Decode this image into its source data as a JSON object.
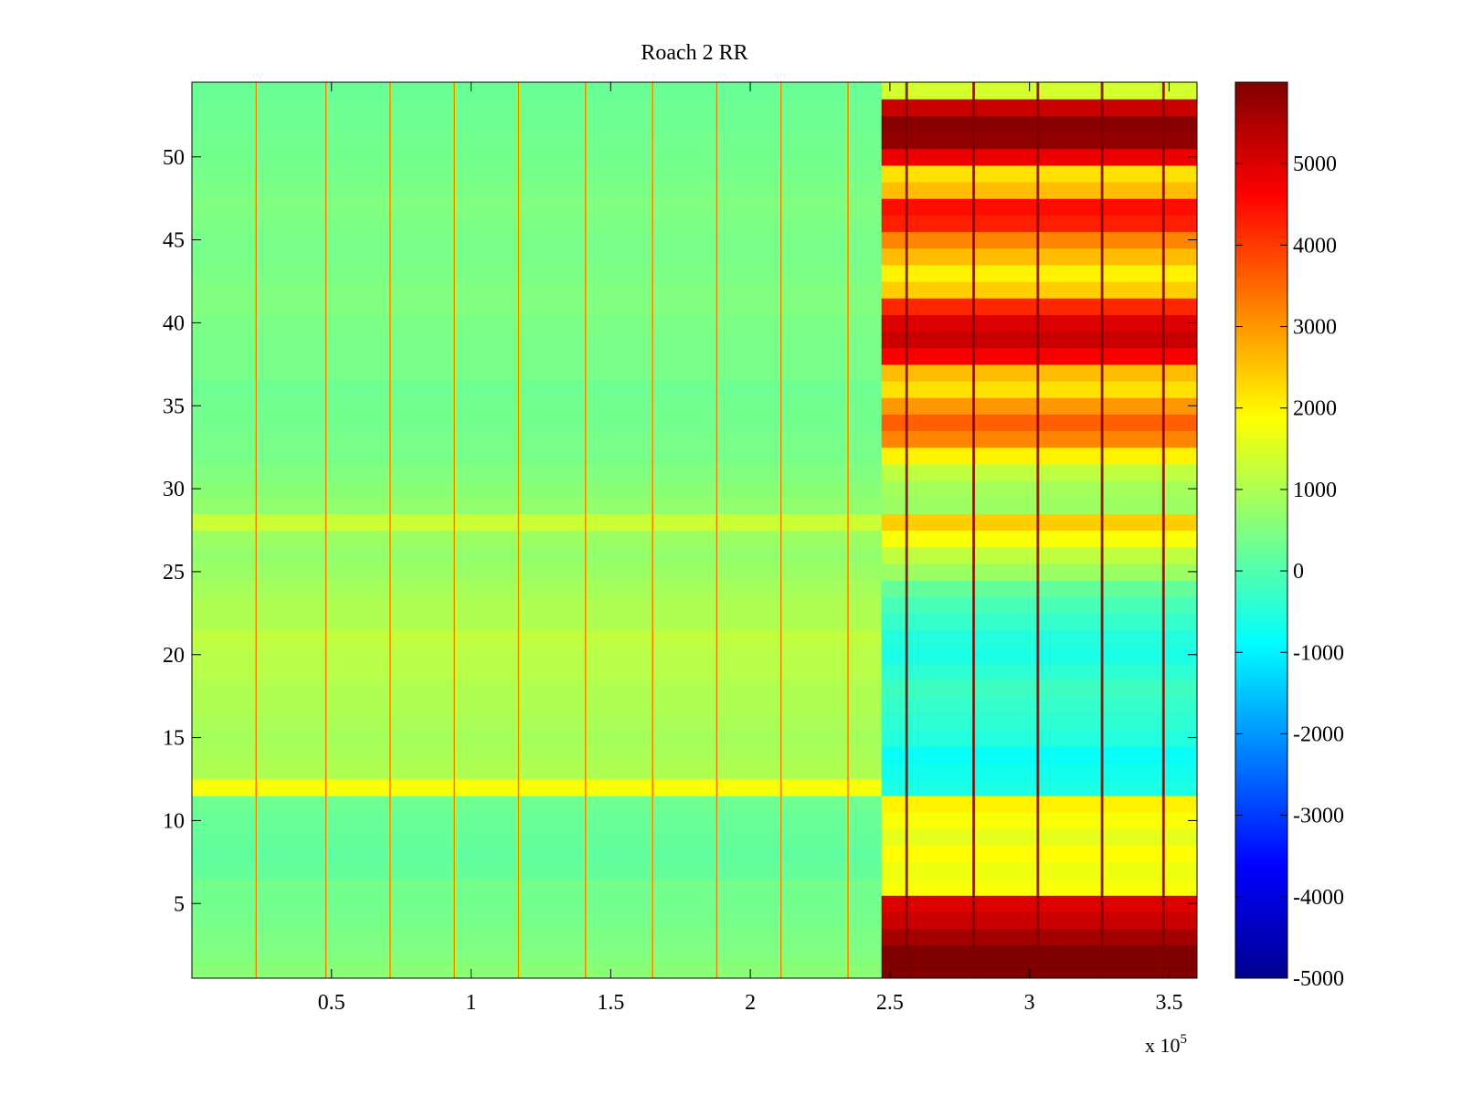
{
  "chart_data": {
    "type": "heatmap",
    "title": "Roach 2 RR",
    "xlabel": "",
    "ylabel": "",
    "x_multiplier_label": "x 10",
    "x_multiplier_exponent": "5",
    "xlim": [
      0,
      3.6
    ],
    "ylim": [
      0.5,
      54.5
    ],
    "xticks": [
      0.5,
      1,
      1.5,
      2,
      2.5,
      3,
      3.5
    ],
    "xtick_labels": [
      "0.5",
      "1",
      "1.5",
      "2",
      "2.5",
      "3",
      "3.5"
    ],
    "yticks": [
      5,
      10,
      15,
      20,
      25,
      30,
      35,
      40,
      45,
      50
    ],
    "ytick_labels": [
      "5",
      "10",
      "15",
      "20",
      "25",
      "30",
      "35",
      "40",
      "45",
      "50"
    ],
    "colormap": "jet",
    "clim": [
      -5000,
      6000
    ],
    "colorbar_ticks": [
      5000,
      4000,
      3000,
      2000,
      1000,
      0,
      -1000,
      -2000,
      -3000,
      -4000,
      -5000
    ],
    "colorbar_tick_labels": [
      "5000",
      "4000",
      "3000",
      "2000",
      "1000",
      "0",
      "-1000",
      "-2000",
      "-3000",
      "-4000",
      "-5000"
    ],
    "rows": 54,
    "regime_change_x": 2.47,
    "row_levels_early": [
      600,
      500,
      450,
      400,
      350,
      350,
      200,
      150,
      200,
      250,
      300,
      1800,
      1000,
      950,
      900,
      950,
      1000,
      1000,
      1100,
      1100,
      1200,
      1000,
      1000,
      900,
      800,
      700,
      800,
      1300,
      700,
      600,
      500,
      400,
      400,
      350,
      350,
      300,
      400,
      400,
      400,
      450,
      500,
      500,
      450,
      400,
      400,
      450,
      500,
      450,
      400,
      350,
      350,
      300,
      300,
      250
    ],
    "row_levels_late": [
      6000,
      6000,
      5600,
      5200,
      5000,
      1800,
      1700,
      1900,
      1600,
      1800,
      2000,
      -600,
      -700,
      -800,
      -500,
      -400,
      -300,
      -200,
      -400,
      -600,
      -500,
      -300,
      -100,
      200,
      800,
      1200,
      1800,
      2400,
      800,
      900,
      1200,
      2000,
      3200,
      3600,
      3000,
      2200,
      2600,
      4700,
      5200,
      5000,
      4200,
      2400,
      2000,
      2600,
      3200,
      4300,
      4500,
      2600,
      2200,
      4800,
      5800,
      5900,
      5200,
      1400
    ],
    "vertical_streaks_x": [
      0.23,
      0.48,
      0.71,
      0.94,
      1.17,
      1.41,
      1.65,
      1.88,
      2.11,
      2.35,
      2.56,
      2.8,
      3.03,
      3.26,
      3.48
    ]
  }
}
